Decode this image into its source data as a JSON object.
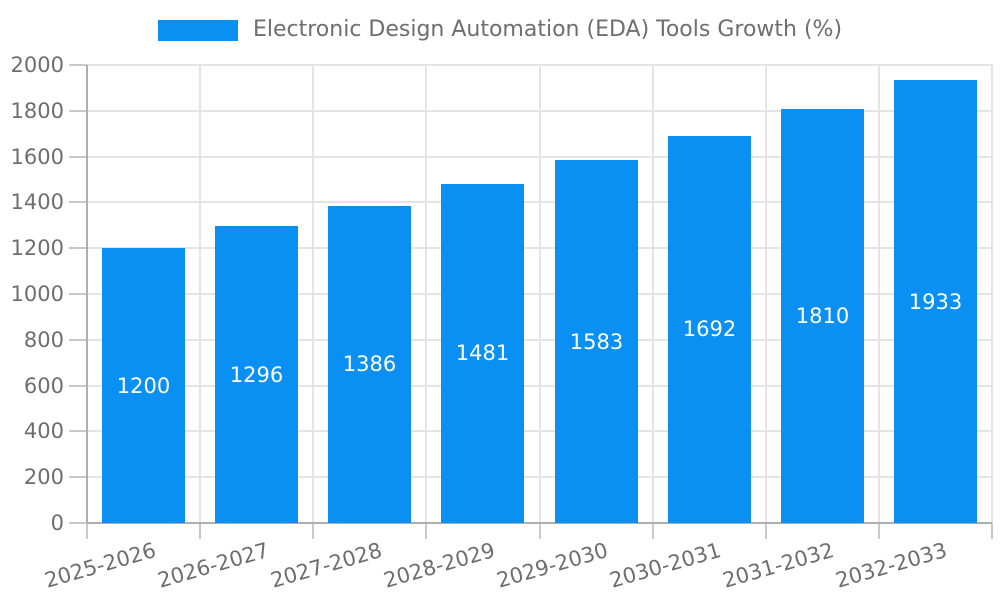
{
  "chart_data": {
    "type": "bar",
    "title": "Electronic Design Automation (EDA) Tools Growth (%)",
    "categories": [
      "2025-2026",
      "2026-2027",
      "2027-2028",
      "2028-2029",
      "2029-2030",
      "2030-2031",
      "2031-2032",
      "2032-2033"
    ],
    "values": [
      1200,
      1296,
      1386,
      1481,
      1583,
      1692,
      1810,
      1933
    ],
    "xlabel": "",
    "ylabel": "",
    "ylim": [
      0,
      2000
    ],
    "ytick_step": 200,
    "ytick_labels": [
      "0",
      "200",
      "400",
      "600",
      "800",
      "1000",
      "1200",
      "1400",
      "1600",
      "1800",
      "2000"
    ],
    "grid": true,
    "legend_position": "top-center",
    "bar_color": "#0a90f2",
    "value_label_color": "#ffffff",
    "axis_text_color": "#6e6e6e",
    "legend_text_color": "#6e6e6e",
    "grid_color": "#e4e4e4",
    "axis_line_color": "#aeaeae",
    "tick_color": "#c9c9c9",
    "background_color": "#ffffff"
  }
}
